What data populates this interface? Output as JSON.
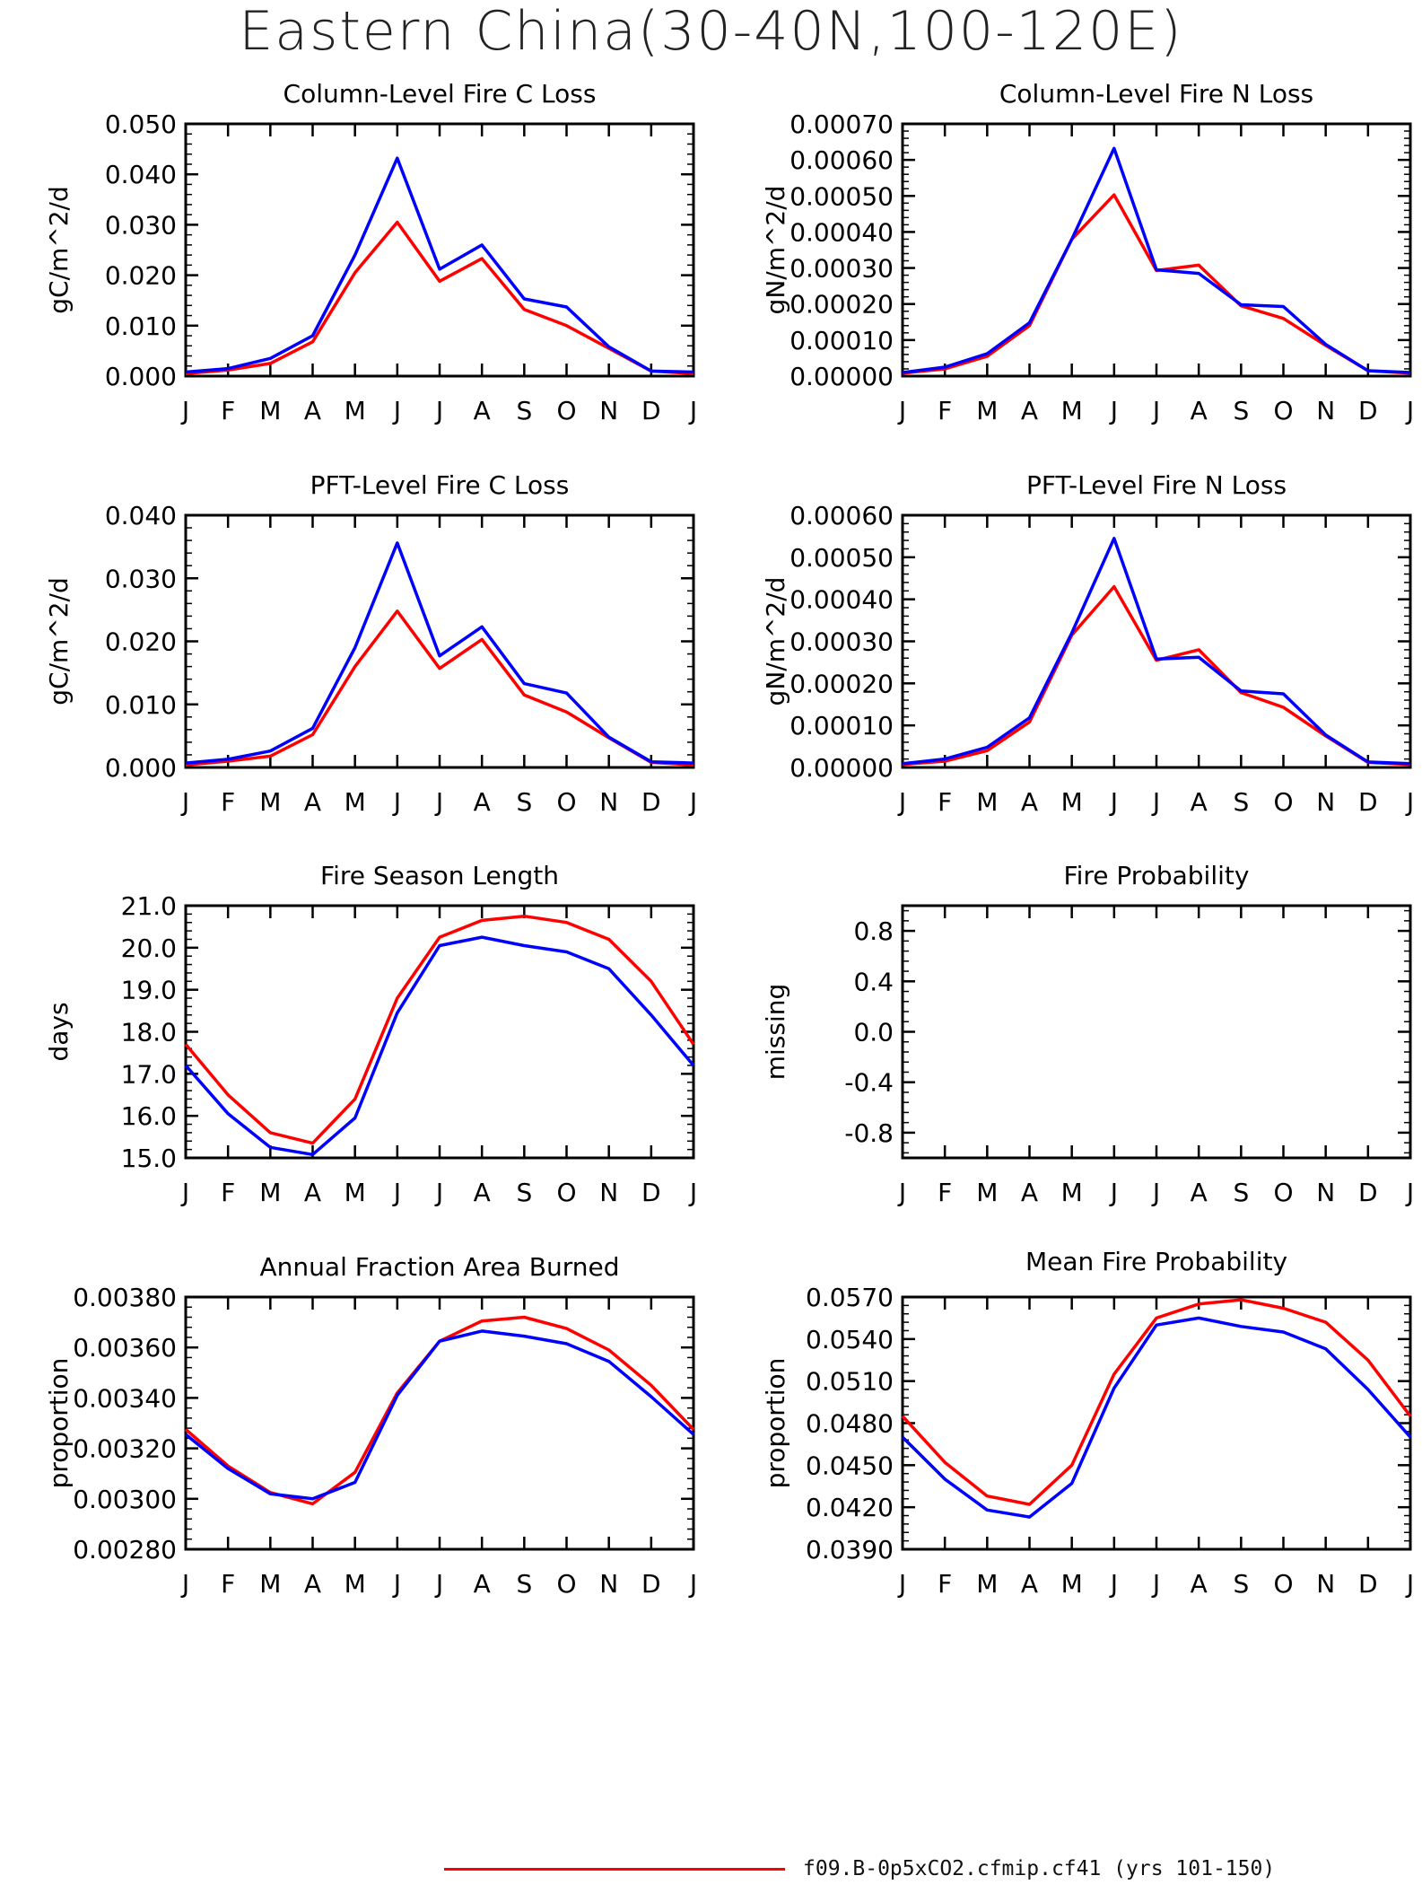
{
  "title": "Eastern China(30-40N,100-120E)",
  "colors": {
    "control": "#ff0000",
    "experiment": "#0000ff"
  },
  "legend": {
    "entries": [
      {
        "color": "#ff0000",
        "label": "f09.B-0p5xCO2.cfmip.cf41 (yrs 101-150)"
      }
    ]
  },
  "chart_data": [
    {
      "type": "line",
      "title": "Column-Level Fire C Loss",
      "ylabel": "gC/m^2/d",
      "xlabel": "",
      "categories": [
        "J",
        "F",
        "M",
        "A",
        "M",
        "J",
        "J",
        "A",
        "S",
        "O",
        "N",
        "D",
        "J"
      ],
      "ylim": [
        0,
        0.05
      ],
      "yticks": [
        "0.000",
        "0.010",
        "0.020",
        "0.030",
        "0.040",
        "0.050"
      ],
      "series": [
        {
          "color": "#ff0000",
          "values": [
            0.0005,
            0.0012,
            0.0025,
            0.0068,
            0.0205,
            0.0305,
            0.0188,
            0.0233,
            0.0132,
            0.01,
            0.0055,
            0.001,
            0.0005
          ]
        },
        {
          "color": "#0000ff",
          "values": [
            0.0008,
            0.0015,
            0.0035,
            0.008,
            0.024,
            0.0432,
            0.0212,
            0.026,
            0.0153,
            0.0137,
            0.0058,
            0.001,
            0.0008
          ]
        }
      ]
    },
    {
      "type": "line",
      "title": "Column-Level Fire N Loss",
      "ylabel": "gN/m^2/d",
      "xlabel": "",
      "categories": [
        "J",
        "F",
        "M",
        "A",
        "M",
        "J",
        "J",
        "A",
        "S",
        "O",
        "N",
        "D",
        "J"
      ],
      "ylim": [
        0,
        0.0007
      ],
      "yticks": [
        "0.00000",
        "0.00010",
        "0.00020",
        "0.00030",
        "0.00040",
        "0.00050",
        "0.00060",
        "0.00070"
      ],
      "series": [
        {
          "color": "#ff0000",
          "values": [
            8e-06,
            2e-05,
            5.5e-05,
            0.00014,
            0.00038,
            0.000503,
            0.000293,
            0.000308,
            0.000195,
            0.00016,
            8.5e-05,
            1.5e-05,
            8e-06
          ]
        },
        {
          "color": "#0000ff",
          "values": [
            1e-05,
            2.5e-05,
            6.2e-05,
            0.000148,
            0.00038,
            0.000632,
            0.000295,
            0.000285,
            0.000198,
            0.000193,
            8.8e-05,
            1.5e-05,
            1e-05
          ]
        }
      ]
    },
    {
      "type": "line",
      "title": "PFT-Level Fire C Loss",
      "ylabel": "gC/m^2/d",
      "xlabel": "",
      "categories": [
        "J",
        "F",
        "M",
        "A",
        "M",
        "J",
        "J",
        "A",
        "S",
        "O",
        "N",
        "D",
        "J"
      ],
      "ylim": [
        0,
        0.04
      ],
      "yticks": [
        "0.000",
        "0.010",
        "0.020",
        "0.030",
        "0.040"
      ],
      "series": [
        {
          "color": "#ff0000",
          "values": [
            0.0004,
            0.001,
            0.0018,
            0.0052,
            0.016,
            0.0248,
            0.0157,
            0.0203,
            0.0115,
            0.0088,
            0.0047,
            0.0008,
            0.0004
          ]
        },
        {
          "color": "#0000ff",
          "values": [
            0.0007,
            0.0013,
            0.0026,
            0.0062,
            0.019,
            0.0356,
            0.0177,
            0.0223,
            0.0133,
            0.0118,
            0.0048,
            0.0009,
            0.0007
          ]
        }
      ]
    },
    {
      "type": "line",
      "title": "PFT-Level Fire N Loss",
      "ylabel": "gN/m^2/d",
      "xlabel": "",
      "categories": [
        "J",
        "F",
        "M",
        "A",
        "M",
        "J",
        "J",
        "A",
        "S",
        "O",
        "N",
        "D",
        "J"
      ],
      "ylim": [
        0,
        0.0006
      ],
      "yticks": [
        "0.00000",
        "0.00010",
        "0.00020",
        "0.00030",
        "0.00040",
        "0.00050",
        "0.00060"
      ],
      "series": [
        {
          "color": "#ff0000",
          "values": [
            7e-06,
            1.5e-05,
            4e-05,
            0.000108,
            0.000315,
            0.00043,
            0.000255,
            0.00028,
            0.000178,
            0.000143,
            7.5e-05,
            1.2e-05,
            7e-06
          ]
        },
        {
          "color": "#0000ff",
          "values": [
            9e-06,
            2e-05,
            4.8e-05,
            0.000118,
            0.00032,
            0.000545,
            0.000258,
            0.000262,
            0.000182,
            0.000175,
            7.7e-05,
            1.3e-05,
            9e-06
          ]
        }
      ]
    },
    {
      "type": "line",
      "title": "Fire Season Length",
      "ylabel": "days",
      "xlabel": "",
      "categories": [
        "J",
        "F",
        "M",
        "A",
        "M",
        "J",
        "J",
        "A",
        "S",
        "O",
        "N",
        "D",
        "J"
      ],
      "ylim": [
        15,
        21
      ],
      "yticks": [
        "15.0",
        "16.0",
        "17.0",
        "18.0",
        "19.0",
        "20.0",
        "21.0"
      ],
      "series": [
        {
          "color": "#ff0000",
          "values": [
            17.7,
            16.5,
            15.6,
            15.35,
            16.4,
            18.8,
            20.25,
            20.65,
            20.75,
            20.6,
            20.2,
            19.2,
            17.7
          ]
        },
        {
          "color": "#0000ff",
          "values": [
            17.2,
            16.05,
            15.25,
            15.08,
            15.95,
            18.45,
            20.05,
            20.25,
            20.05,
            19.9,
            19.5,
            18.4,
            17.2
          ]
        }
      ]
    },
    {
      "type": "line",
      "title": "Fire Probability",
      "ylabel": "missing",
      "xlabel": "",
      "categories": [
        "J",
        "F",
        "M",
        "A",
        "M",
        "J",
        "J",
        "A",
        "S",
        "O",
        "N",
        "D",
        "J"
      ],
      "ylim": [
        -1,
        1
      ],
      "yticks": [
        "-0.8",
        "-0.4",
        "0.0",
        "0.4",
        "0.8"
      ],
      "yticks_values": [
        -0.8,
        -0.4,
        0,
        0.4,
        0.8
      ],
      "series": []
    },
    {
      "type": "line",
      "title": "Annual Fraction Area Burned",
      "ylabel": "proportion",
      "xlabel": "",
      "categories": [
        "J",
        "F",
        "M",
        "A",
        "M",
        "J",
        "J",
        "A",
        "S",
        "O",
        "N",
        "D",
        "J"
      ],
      "ylim": [
        0.0028,
        0.0038
      ],
      "yticks": [
        "0.00280",
        "0.00300",
        "0.00320",
        "0.00340",
        "0.00360",
        "0.00380"
      ],
      "series": [
        {
          "color": "#ff0000",
          "values": [
            0.003275,
            0.00313,
            0.003025,
            0.00298,
            0.003105,
            0.00342,
            0.003625,
            0.003705,
            0.00372,
            0.003675,
            0.00359,
            0.00345,
            0.003275
          ]
        },
        {
          "color": "#0000ff",
          "values": [
            0.003255,
            0.00312,
            0.00302,
            0.003,
            0.003065,
            0.00341,
            0.003625,
            0.003665,
            0.003645,
            0.003615,
            0.003545,
            0.003405,
            0.003255
          ]
        }
      ]
    },
    {
      "type": "line",
      "title": "Mean Fire Probability",
      "ylabel": "proportion",
      "xlabel": "",
      "categories": [
        "J",
        "F",
        "M",
        "A",
        "M",
        "J",
        "J",
        "A",
        "S",
        "O",
        "N",
        "D",
        "J"
      ],
      "ylim": [
        0.039,
        0.057
      ],
      "yticks": [
        "0.0390",
        "0.0420",
        "0.0450",
        "0.0480",
        "0.0510",
        "0.0540",
        "0.0570"
      ],
      "series": [
        {
          "color": "#ff0000",
          "values": [
            0.0485,
            0.0452,
            0.0428,
            0.0422,
            0.045,
            0.0515,
            0.0555,
            0.0565,
            0.0568,
            0.0562,
            0.0552,
            0.0525,
            0.0485
          ]
        },
        {
          "color": "#0000ff",
          "values": [
            0.047,
            0.044,
            0.0418,
            0.0413,
            0.0437,
            0.0505,
            0.055,
            0.0555,
            0.0549,
            0.0545,
            0.0533,
            0.0504,
            0.047
          ]
        }
      ]
    }
  ]
}
